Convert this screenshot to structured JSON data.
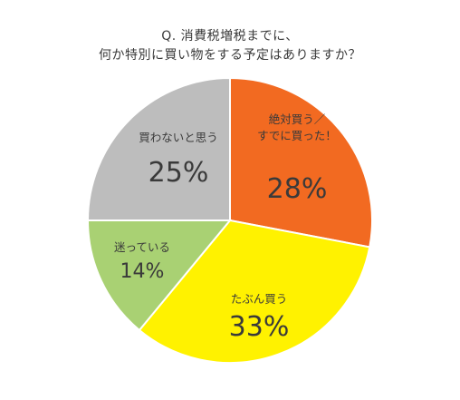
{
  "chart_data": {
    "type": "pie",
    "title_lines": [
      "Q. 消費税増税までに、",
      "何か特別に買い物をする予定はありますか？"
    ],
    "slices": [
      {
        "label_lines": [
          "絶対買う／",
          "すでに買った！"
        ],
        "value": 28,
        "value_label": "28%",
        "color": "#f26a21"
      },
      {
        "label_lines": [
          "たぶん買う"
        ],
        "value": 33,
        "value_label": "33%",
        "color": "#fff200"
      },
      {
        "label_lines": [
          "迷っている"
        ],
        "value": 14,
        "value_label": "14%",
        "color": "#a9d173"
      },
      {
        "label_lines": [
          "買わないと思う"
        ],
        "value": 25,
        "value_label": "25%",
        "color": "#bdbdbd"
      }
    ],
    "start": "12 o'clock",
    "direction": "clockwise"
  }
}
